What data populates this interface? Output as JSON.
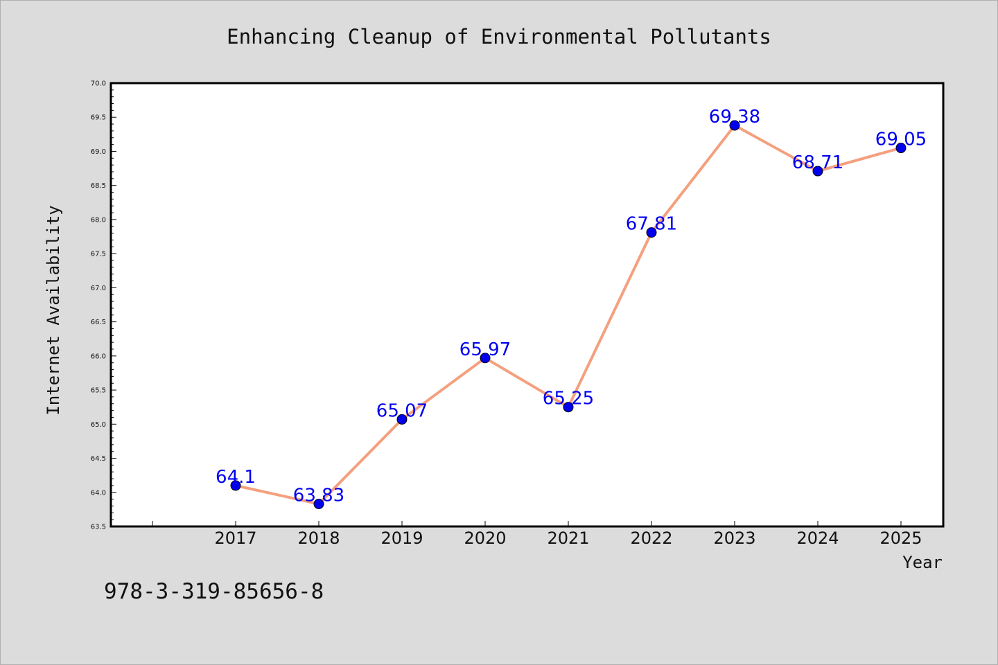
{
  "chart_data": {
    "type": "line",
    "title": "Enhancing Cleanup of Environmental Pollutants",
    "xlabel": "Year",
    "ylabel": "Internet Availability",
    "x": [
      "2017",
      "2018",
      "2019",
      "2020",
      "2021",
      "2022",
      "2023",
      "2024",
      "2025"
    ],
    "values": [
      64.1,
      63.83,
      65.07,
      65.97,
      65.25,
      67.81,
      69.38,
      68.71,
      69.05
    ],
    "data_labels": [
      "64.1",
      "63.83",
      "65.07",
      "65.97",
      "65.25",
      "67.81",
      "69.38",
      "68.71",
      "69.05"
    ],
    "ylim": [
      63.5,
      70.0
    ],
    "yticks": [
      "63.5",
      "64.0",
      "64.5",
      "65.0",
      "65.5",
      "66.0",
      "66.5",
      "67.0",
      "67.5",
      "68.0",
      "68.5",
      "69.0",
      "69.5",
      "70.0"
    ],
    "grid": false,
    "legend": "none",
    "colors": {
      "line": "#f4a07f",
      "marker": "#0000ee",
      "label": "#0000ee",
      "background": "#dcdcdc",
      "plot_background": "#ffffff"
    }
  },
  "footer": {
    "isbn": "978-3-319-85656-8"
  }
}
